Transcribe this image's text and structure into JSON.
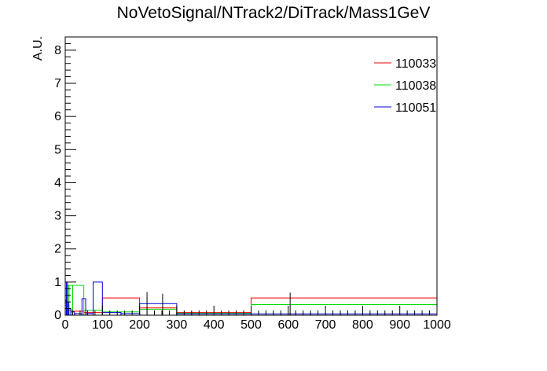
{
  "chart_data": {
    "type": "histogram",
    "title": "NoVetoSignal/NTrack2/DiTrack/Mass1GeV",
    "xlabel": "",
    "ylabel": "A.U.",
    "xlim": [
      0,
      1000
    ],
    "ylim": [
      0,
      8.4
    ],
    "x_ticks": [
      "0",
      "100",
      "200",
      "300",
      "400",
      "500",
      "600",
      "700",
      "800",
      "900",
      "1000"
    ],
    "y_ticks": [
      "0",
      "1",
      "2",
      "3",
      "4",
      "5",
      "6",
      "7",
      "8"
    ],
    "grid": false,
    "legend_position": "top-right",
    "series": [
      {
        "name": "110033",
        "color": "#ff0000",
        "bins": [
          {
            "x0": 0,
            "x1": 5,
            "y": 0.35
          },
          {
            "x0": 5,
            "x1": 10,
            "y": 0.28
          },
          {
            "x0": 10,
            "x1": 20,
            "y": 0.15
          },
          {
            "x0": 20,
            "x1": 50,
            "y": 0.12
          },
          {
            "x0": 50,
            "x1": 100,
            "y": 0.08
          },
          {
            "x0": 100,
            "x1": 200,
            "y": 0.52
          },
          {
            "x0": 200,
            "x1": 300,
            "y": 0.22
          },
          {
            "x0": 300,
            "x1": 500,
            "y": 0.08
          },
          {
            "x0": 500,
            "x1": 1000,
            "y": 0.52
          }
        ]
      },
      {
        "name": "110038",
        "color": "#00dd00",
        "bins": [
          {
            "x0": 0,
            "x1": 5,
            "y": 0.3
          },
          {
            "x0": 5,
            "x1": 10,
            "y": 0.9
          },
          {
            "x0": 10,
            "x1": 20,
            "y": 0.9
          },
          {
            "x0": 20,
            "x1": 50,
            "y": 0.9
          },
          {
            "x0": 50,
            "x1": 100,
            "y": 0.15
          },
          {
            "x0": 100,
            "x1": 200,
            "y": 0.1
          },
          {
            "x0": 200,
            "x1": 300,
            "y": 0.18
          },
          {
            "x0": 300,
            "x1": 500,
            "y": 0.06
          },
          {
            "x0": 500,
            "x1": 1000,
            "y": 0.32
          }
        ]
      },
      {
        "name": "110051",
        "color": "#0000dd",
        "bins": [
          {
            "x0": 0,
            "x1": 3,
            "y": 0.45
          },
          {
            "x0": 3,
            "x1": 6,
            "y": 1.0
          },
          {
            "x0": 6,
            "x1": 9,
            "y": 0.4
          },
          {
            "x0": 9,
            "x1": 15,
            "y": 0.2
          },
          {
            "x0": 15,
            "x1": 25,
            "y": 0.1
          },
          {
            "x0": 25,
            "x1": 45,
            "y": 0.05
          },
          {
            "x0": 45,
            "x1": 55,
            "y": 0.5
          },
          {
            "x0": 55,
            "x1": 75,
            "y": 0.05
          },
          {
            "x0": 75,
            "x1": 100,
            "y": 1.0
          },
          {
            "x0": 100,
            "x1": 150,
            "y": 0.08
          },
          {
            "x0": 150,
            "x1": 200,
            "y": 0.05
          },
          {
            "x0": 200,
            "x1": 300,
            "y": 0.35
          },
          {
            "x0": 300,
            "x1": 500,
            "y": 0.04
          },
          {
            "x0": 500,
            "x1": 1000,
            "y": 0.04
          }
        ]
      }
    ],
    "error_bars": [
      {
        "x": 220,
        "lo": 0.0,
        "hi": 0.7
      },
      {
        "x": 262,
        "lo": 0.0,
        "hi": 0.65
      },
      {
        "x": 605,
        "lo": 0.0,
        "hi": 0.68
      }
    ]
  }
}
